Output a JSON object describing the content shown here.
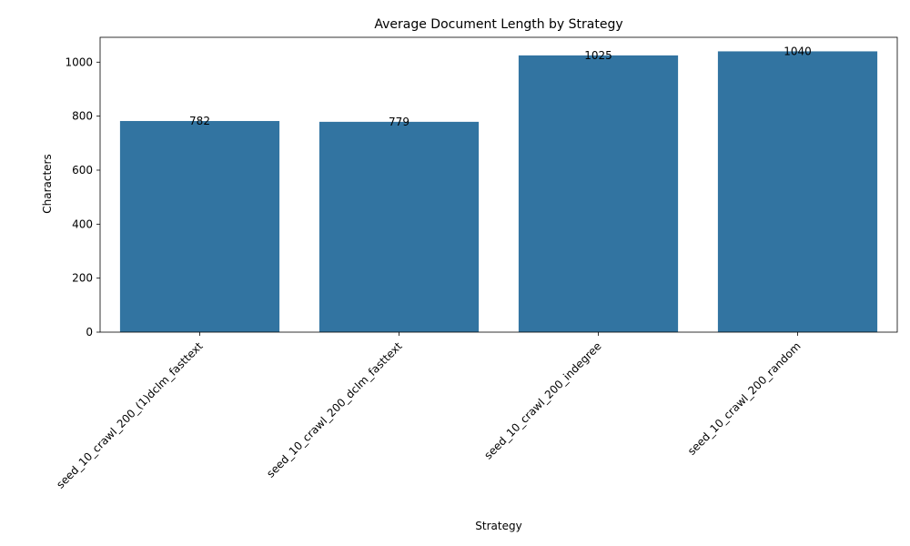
{
  "chart_data": {
    "type": "bar",
    "title": "Average Document Length by Strategy",
    "xlabel": "Strategy",
    "ylabel": "Characters",
    "categories": [
      "seed_10_crawl_200_(1)dclm_fasttext",
      "seed_10_crawl_200_dclm_fasttext",
      "seed_10_crawl_200_indegree",
      "seed_10_crawl_200_random"
    ],
    "values": [
      782,
      779,
      1025,
      1040
    ],
    "data_labels": [
      "782",
      "779",
      "1025",
      "1040"
    ],
    "yticks": [
      0,
      200,
      400,
      600,
      800,
      1000
    ],
    "ylim": [
      0,
      1092
    ],
    "grid": false,
    "legend": "none",
    "bar_color": "#3274a1"
  }
}
